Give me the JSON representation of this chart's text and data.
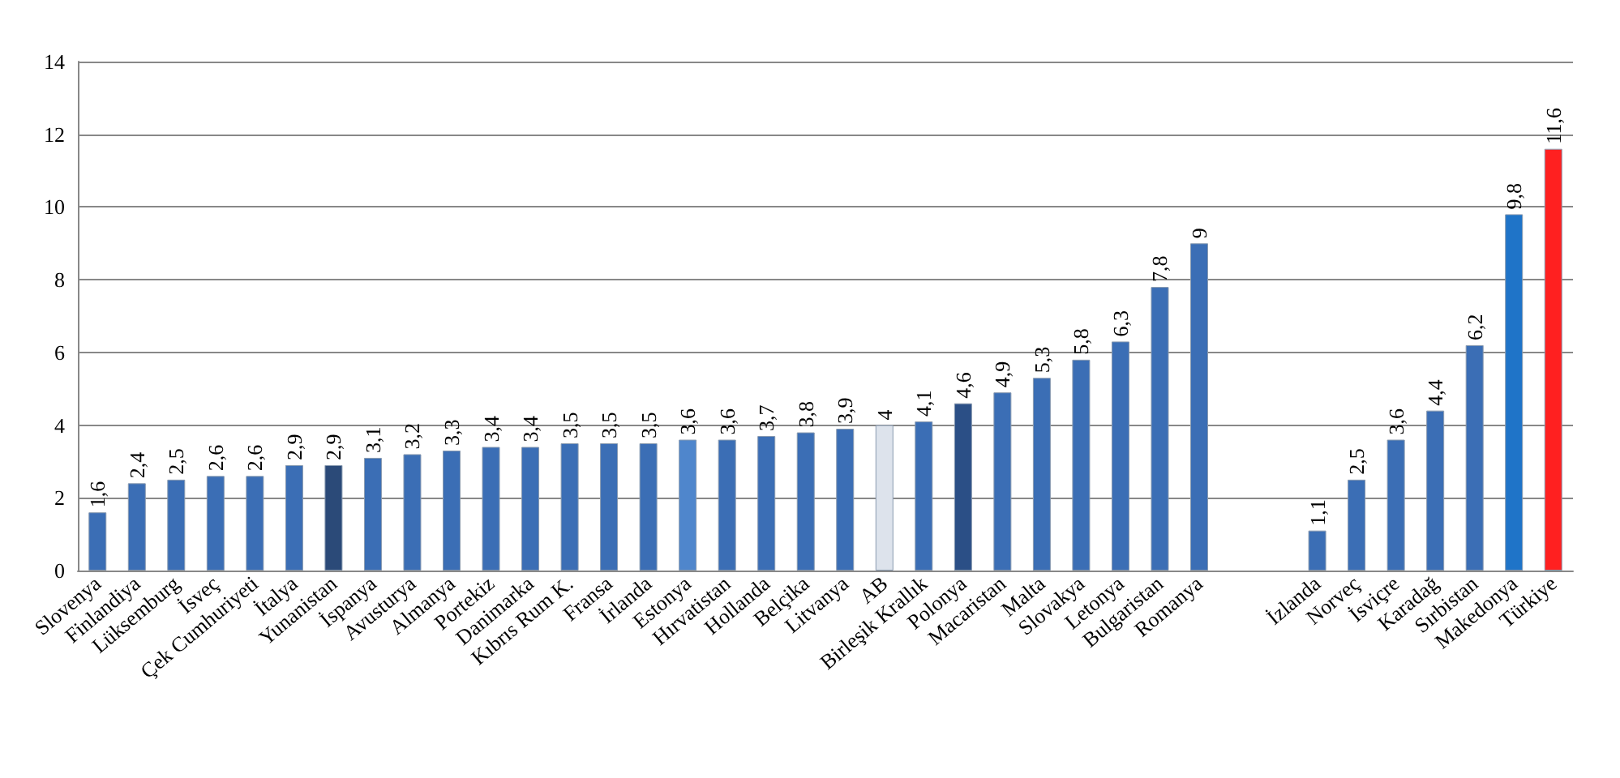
{
  "chart_data": {
    "type": "bar",
    "categories": [
      "Slovenya",
      "Finlandiya",
      "Lüksemburg",
      "İsveç",
      "Çek Cumhuriyeti",
      "İtalya",
      "Yunanistan",
      "İspanya",
      "Avusturya",
      "Almanya",
      "Portekiz",
      "Danimarka",
      "Kıbrıs Rum K.",
      "Fransa",
      "İrlanda",
      "Estonya",
      "Hırvatistan",
      "Hollanda",
      "Belçika",
      "Litvanya",
      "AB",
      "Birleşik Krallık",
      "Polonya",
      "Macaristan",
      "Malta",
      "Slovakya",
      "Letonya",
      "Bulgaristan",
      "Romanya",
      null,
      null,
      "İzlanda",
      "Norveç",
      "İsviçre",
      "Karadağ",
      "Sırbistan",
      "Makedonya",
      "Türkiye"
    ],
    "values": [
      1.6,
      2.4,
      2.5,
      2.6,
      2.6,
      2.9,
      2.9,
      3.1,
      3.2,
      3.3,
      3.4,
      3.4,
      3.5,
      3.5,
      3.5,
      3.6,
      3.6,
      3.7,
      3.8,
      3.9,
      4,
      4.1,
      4.6,
      4.9,
      5.3,
      5.8,
      6.3,
      7.8,
      9,
      null,
      null,
      1.1,
      2.5,
      3.6,
      4.4,
      6.2,
      9.8,
      11.6
    ],
    "value_labels": [
      "1,6",
      "2,4",
      "2,5",
      "2,6",
      "2,6",
      "2,9",
      "2,9",
      "3,1",
      "3,2",
      "3,3",
      "3,4",
      "3,4",
      "3,5",
      "3,5",
      "3,5",
      "3,6",
      "3,6",
      "3,7",
      "3,8",
      "3,9",
      "4",
      "4,1",
      "4,6",
      "4,9",
      "5,3",
      "5,8",
      "6,3",
      "7,8",
      "9",
      null,
      null,
      "1,1",
      "2,5",
      "3,6",
      "4,4",
      "6,2",
      "9,8",
      "11,6"
    ],
    "colors": [
      "#3b6eb5",
      "#3b6eb5",
      "#3b6eb5",
      "#3b6eb5",
      "#3b6eb5",
      "#3b6eb5",
      "#2b4a78",
      "#3b6eb5",
      "#3b6eb5",
      "#3b6eb5",
      "#3b6eb5",
      "#3b6eb5",
      "#3b6eb5",
      "#3b6eb5",
      "#3b6eb5",
      "#4f86cc",
      "#3b6eb5",
      "#3b6eb5",
      "#3b6eb5",
      "#3b6eb5",
      "#dde3ec",
      "#3b6eb5",
      "#2b4f86",
      "#3b6eb5",
      "#3b6eb5",
      "#3b6eb5",
      "#3b6eb5",
      "#3b6eb5",
      "#3b6eb5",
      "#3b6eb5",
      "#3b6eb5",
      "#3b6eb5",
      "#3b6eb5",
      "#3b6eb5",
      "#3b6eb5",
      "#3b6eb5",
      "#1f74c8",
      "#ff2020"
    ],
    "ylim": [
      0,
      14
    ],
    "yticks": [
      0,
      2,
      4,
      6,
      8,
      10,
      12,
      14
    ],
    "grid": "y"
  }
}
